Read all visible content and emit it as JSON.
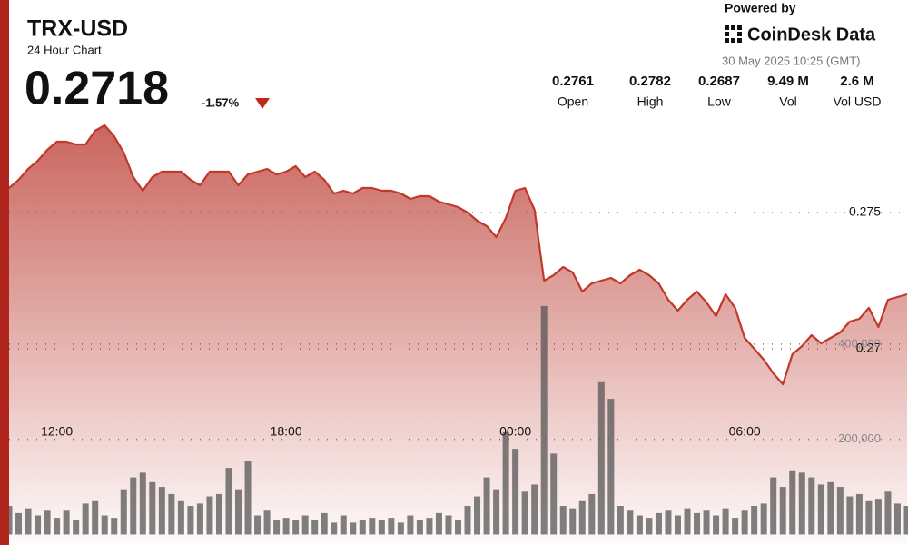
{
  "header": {
    "symbol": "TRX-USD",
    "subtitle": "24 Hour Chart",
    "price": "0.2718",
    "change": "-1.57%",
    "powered_by": "Powered by",
    "brand": "CoinDesk Data",
    "timestamp": "30 May 2025 10:25 (GMT)"
  },
  "stats": [
    {
      "value": "0.2761",
      "label": "Open"
    },
    {
      "value": "0.2782",
      "label": "High"
    },
    {
      "value": "0.2687",
      "label": "Low"
    },
    {
      "value": "9.49 M",
      "label": "Vol"
    },
    {
      "value": "2.6 M",
      "label": "Vol USD"
    }
  ],
  "chart_data": {
    "type": "line",
    "categories": [
      null,
      null,
      null,
      null,
      null,
      "12:00",
      null,
      null,
      null,
      null,
      null,
      null,
      null,
      null,
      null,
      null,
      null,
      null,
      null,
      null,
      null,
      null,
      null,
      null,
      null,
      null,
      null,
      null,
      null,
      "18:00",
      null,
      null,
      null,
      null,
      null,
      null,
      null,
      null,
      null,
      null,
      null,
      null,
      null,
      null,
      null,
      null,
      null,
      null,
      null,
      null,
      null,
      null,
      null,
      "00:00",
      null,
      null,
      null,
      null,
      null,
      null,
      null,
      null,
      null,
      null,
      null,
      null,
      null,
      null,
      null,
      null,
      null,
      null,
      null,
      null,
      null,
      null,
      null,
      "06:00",
      null,
      null,
      null,
      null,
      null,
      null,
      null,
      null,
      null,
      null,
      null,
      null,
      null,
      null,
      null,
      null,
      null
    ],
    "series": [
      {
        "color": "#c0392b",
        "values": [
          0.2759,
          0.2762,
          0.2766,
          0.2769,
          0.2773,
          0.2776,
          0.2776,
          0.2775,
          0.2775,
          0.278,
          0.2782,
          0.2778,
          0.2772,
          0.2763,
          0.2758,
          0.2763,
          0.2765,
          0.2765,
          0.2765,
          0.2762,
          0.276,
          0.2765,
          0.2765,
          0.2765,
          0.276,
          0.2764,
          0.2765,
          0.2766,
          0.2764,
          0.2765,
          0.2767,
          0.2763,
          0.2765,
          0.2762,
          0.2757,
          0.2758,
          0.2757,
          0.2759,
          0.2759,
          0.2758,
          0.2758,
          0.2757,
          0.2755,
          0.2756,
          0.2756,
          0.2754,
          0.2753,
          0.2752,
          0.275,
          0.2747,
          0.2745,
          0.2741,
          0.2748,
          0.2758,
          0.2759,
          0.2751,
          0.2725,
          0.2727,
          0.273,
          0.2728,
          0.2721,
          0.2724,
          0.2725,
          0.2726,
          0.2724,
          0.2727,
          0.2729,
          0.2727,
          0.2724,
          0.2718,
          0.2714,
          0.2718,
          0.2721,
          0.2717,
          0.2712,
          0.272,
          0.2715,
          0.2704,
          0.27,
          0.2696,
          0.2691,
          0.2687,
          0.2698,
          0.2701,
          0.2705,
          0.2702,
          0.2704,
          0.2706,
          0.271,
          0.2711,
          0.2715,
          0.2708,
          0.2718,
          0.2719,
          0.272
        ]
      },
      {
        "type": "bar",
        "axis": "y2",
        "color": "#555555",
        "values": [
          60000,
          45000,
          55000,
          40000,
          50000,
          35000,
          50000,
          30000,
          65000,
          70000,
          40000,
          35000,
          95000,
          120000,
          130000,
          110000,
          100000,
          85000,
          70000,
          60000,
          65000,
          80000,
          85000,
          140000,
          95000,
          155000,
          40000,
          50000,
          30000,
          35000,
          30000,
          40000,
          30000,
          45000,
          25000,
          40000,
          25000,
          30000,
          35000,
          30000,
          35000,
          25000,
          40000,
          30000,
          35000,
          45000,
          40000,
          30000,
          60000,
          80000,
          120000,
          95000,
          215000,
          180000,
          90000,
          105000,
          480000,
          170000,
          60000,
          55000,
          70000,
          85000,
          320000,
          285000,
          60000,
          50000,
          40000,
          35000,
          45000,
          50000,
          40000,
          55000,
          45000,
          50000,
          40000,
          55000,
          35000,
          50000,
          60000,
          65000,
          120000,
          100000,
          135000,
          130000,
          120000,
          105000,
          110000,
          100000,
          80000,
          85000,
          70000,
          75000,
          90000,
          65000,
          60000
        ]
      }
    ],
    "ylim": [
      0.2628,
      0.2828
    ],
    "yticks": [
      0.27,
      0.275
    ],
    "y2lim": [
      -22000,
      1123000
    ],
    "y2ticks": [
      {
        "value": 200000,
        "label": "200,000"
      },
      {
        "value": 400000,
        "label": "400,000"
      }
    ],
    "grid": true
  }
}
